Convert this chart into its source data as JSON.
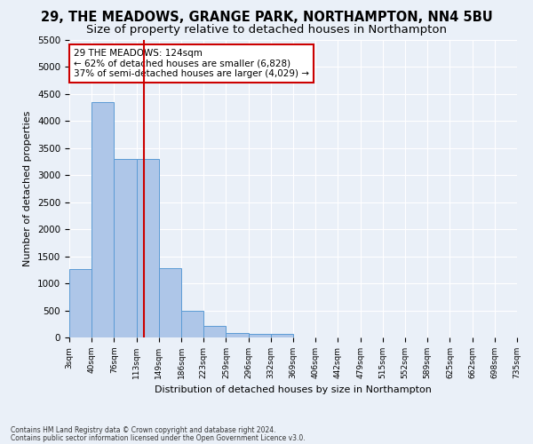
{
  "title1": "29, THE MEADOWS, GRANGE PARK, NORTHAMPTON, NN4 5BU",
  "title2": "Size of property relative to detached houses in Northampton",
  "xlabel": "Distribution of detached houses by size in Northampton",
  "ylabel": "Number of detached properties",
  "footnote1": "Contains HM Land Registry data © Crown copyright and database right 2024.",
  "footnote2": "Contains public sector information licensed under the Open Government Licence v3.0.",
  "bar_values": [
    1270,
    4350,
    3300,
    3300,
    1280,
    490,
    220,
    90,
    70,
    60,
    0,
    0,
    0,
    0,
    0,
    0,
    0,
    0,
    0,
    0
  ],
  "tick_labels": [
    "3sqm",
    "40sqm",
    "76sqm",
    "113sqm",
    "149sqm",
    "186sqm",
    "223sqm",
    "259sqm",
    "296sqm",
    "332sqm",
    "369sqm",
    "406sqm",
    "442sqm",
    "479sqm",
    "515sqm",
    "552sqm",
    "589sqm",
    "625sqm",
    "662sqm",
    "698sqm",
    "735sqm"
  ],
  "bar_color": "#aec6e8",
  "bar_edge_color": "#5b9bd5",
  "vline_color": "#cc0000",
  "annotation_text": "29 THE MEADOWS: 124sqm\n← 62% of detached houses are smaller (6,828)\n37% of semi-detached houses are larger (4,029) →",
  "annotation_box_color": "#ffffff",
  "annotation_box_edge": "#cc0000",
  "ylim_max": 5500,
  "yticks": [
    0,
    500,
    1000,
    1500,
    2000,
    2500,
    3000,
    3500,
    4000,
    4500,
    5000,
    5500
  ],
  "bg_color": "#eaf0f8",
  "grid_color": "#ffffff",
  "title1_fontsize": 10.5,
  "title2_fontsize": 9.5,
  "vline_position": 2.84
}
